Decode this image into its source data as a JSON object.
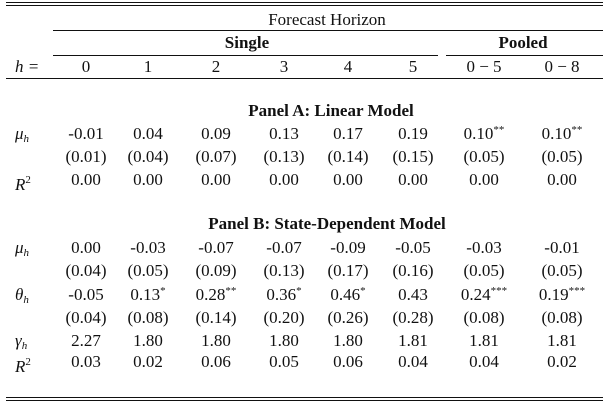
{
  "header": {
    "forecast_horizon": "Forecast Horizon",
    "single": "Single",
    "pooled": "Pooled",
    "h_label": "h =",
    "horizons": [
      "0",
      "1",
      "2",
      "3",
      "4",
      "5",
      "0 − 5",
      "0 − 8"
    ]
  },
  "panel_a": {
    "title": "Panel A: Linear Model",
    "rows": [
      {
        "symbol": "μ",
        "sub": "h",
        "sup": "",
        "values": [
          "-0.01",
          "0.04",
          "0.09",
          "0.13",
          "0.17",
          "0.19",
          "0.10",
          "0.10"
        ],
        "stars": [
          "",
          "",
          "",
          "",
          "",
          "",
          "**",
          "**"
        ]
      },
      {
        "symbol": "",
        "sub": "",
        "sup": "",
        "values": [
          "(0.01)",
          "(0.04)",
          "(0.07)",
          "(0.13)",
          "(0.14)",
          "(0.15)",
          "(0.05)",
          "(0.05)"
        ],
        "stars": [
          "",
          "",
          "",
          "",
          "",
          "",
          "",
          ""
        ]
      },
      {
        "symbol": "R",
        "sub": "",
        "sup": "2",
        "values": [
          "0.00",
          "0.00",
          "0.00",
          "0.00",
          "0.00",
          "0.00",
          "0.00",
          "0.00"
        ],
        "stars": [
          "",
          "",
          "",
          "",
          "",
          "",
          "",
          ""
        ]
      }
    ]
  },
  "panel_b": {
    "title": "Panel B: State-Dependent Model",
    "rows": [
      {
        "symbol": "μ",
        "sub": "h",
        "sup": "",
        "values": [
          "0.00",
          "-0.03",
          "-0.07",
          "-0.07",
          "-0.09",
          "-0.05",
          "-0.03",
          "-0.01"
        ],
        "stars": [
          "",
          "",
          "",
          "",
          "",
          "",
          "",
          ""
        ]
      },
      {
        "symbol": "",
        "sub": "",
        "sup": "",
        "values": [
          "(0.04)",
          "(0.05)",
          "(0.09)",
          "(0.13)",
          "(0.17)",
          "(0.16)",
          "(0.05)",
          "(0.05)"
        ],
        "stars": [
          "",
          "",
          "",
          "",
          "",
          "",
          "",
          ""
        ]
      },
      {
        "symbol": "θ",
        "sub": "h",
        "sup": "",
        "values": [
          "-0.05",
          "0.13",
          "0.28",
          "0.36",
          "0.46",
          "0.43",
          "0.24",
          "0.19"
        ],
        "stars": [
          "",
          "*",
          "**",
          "*",
          "*",
          "",
          "***",
          "***"
        ]
      },
      {
        "symbol": "",
        "sub": "",
        "sup": "",
        "values": [
          "(0.04)",
          "(0.08)",
          "(0.14)",
          "(0.20)",
          "(0.26)",
          "(0.28)",
          "(0.08)",
          "(0.08)"
        ],
        "stars": [
          "",
          "",
          "",
          "",
          "",
          "",
          "",
          ""
        ]
      },
      {
        "symbol": "γ",
        "sub": "h",
        "sup": "",
        "values": [
          "2.27",
          "1.80",
          "1.80",
          "1.80",
          "1.80",
          "1.81",
          "1.81",
          "1.81"
        ],
        "stars": [
          "",
          "",
          "",
          "",
          "",
          "",
          "",
          ""
        ]
      },
      {
        "symbol": "R",
        "sub": "",
        "sup": "2",
        "values": [
          "0.03",
          "0.02",
          "0.06",
          "0.05",
          "0.06",
          "0.04",
          "0.04",
          "0.02"
        ],
        "stars": [
          "",
          "",
          "",
          "",
          "",
          "",
          "",
          ""
        ]
      }
    ]
  }
}
